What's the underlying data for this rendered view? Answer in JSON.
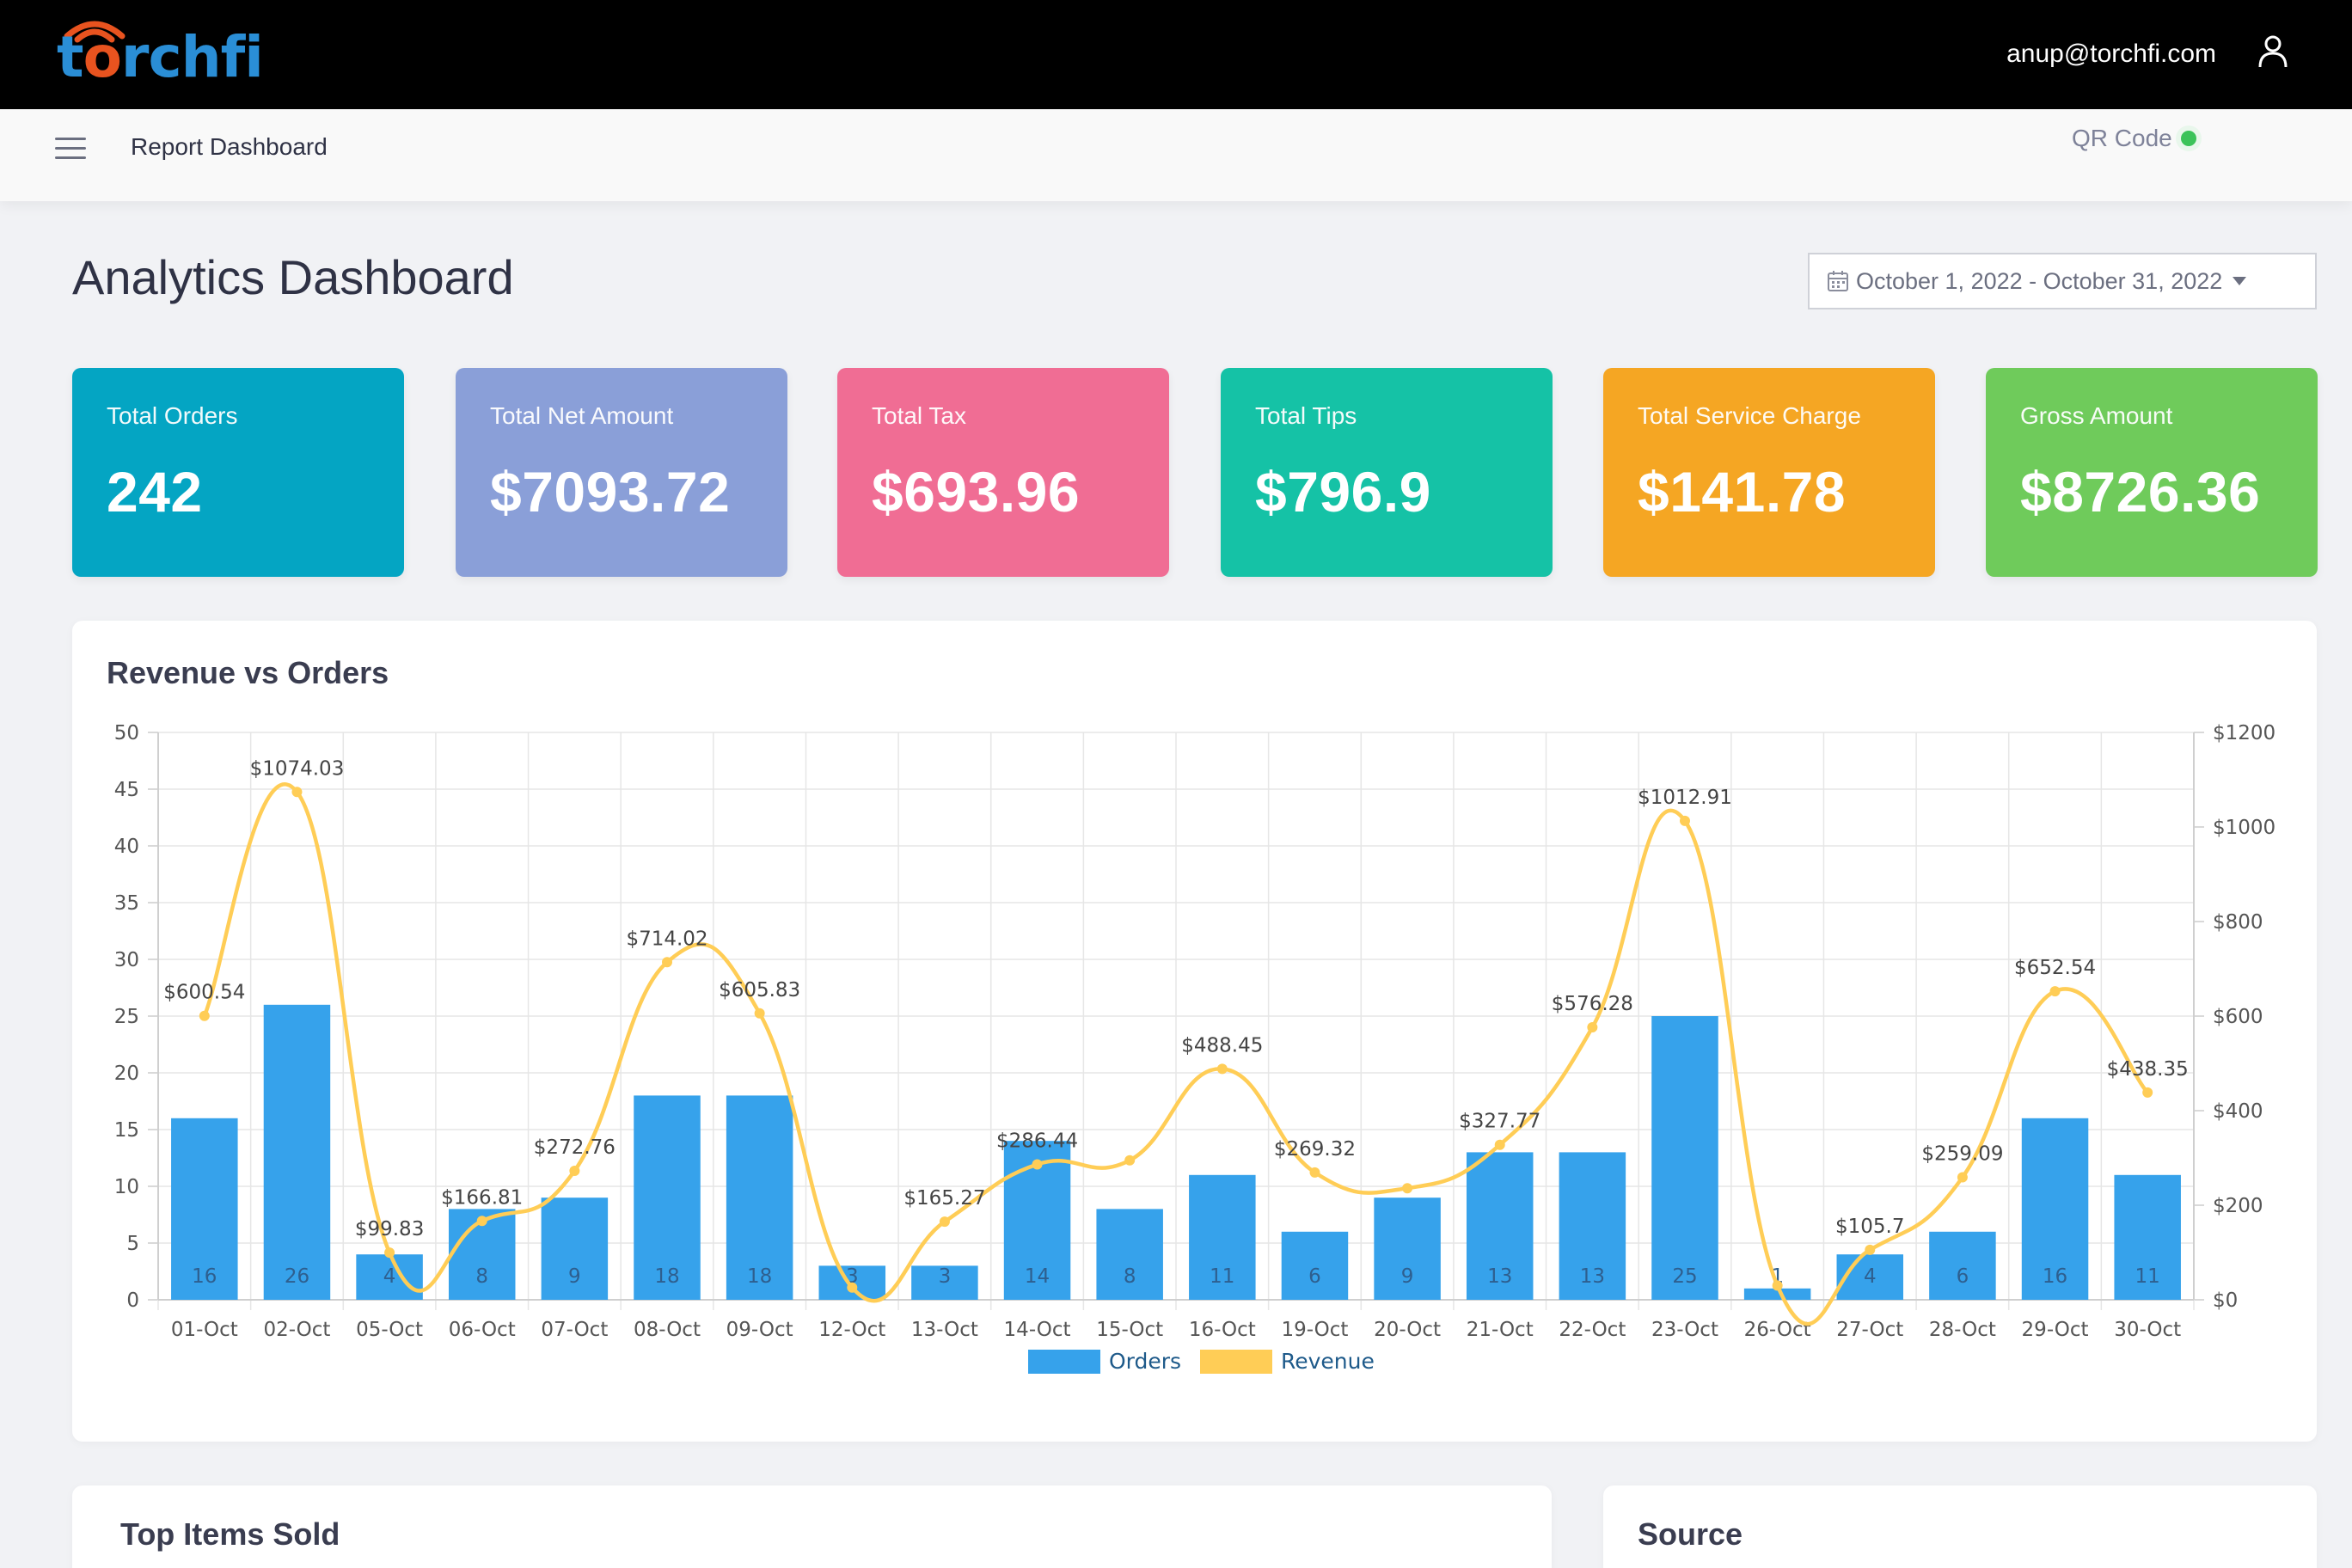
{
  "header": {
    "logo_text": "torchfi",
    "user_email": "anup@torchfi.com"
  },
  "subbar": {
    "title": "Report Dashboard",
    "qr_label": "QR Code"
  },
  "page": {
    "title": "Analytics Dashboard",
    "date_range": "October 1, 2022 - October 31, 2022"
  },
  "stats": [
    {
      "label": "Total Orders",
      "value": "242",
      "color": "#04a5c3"
    },
    {
      "label": "Total Net Amount",
      "value": "$7093.72",
      "color": "#8a9fd8"
    },
    {
      "label": "Total Tax",
      "value": "$693.96",
      "color": "#f06d94"
    },
    {
      "label": "Total Tips",
      "value": "$796.9",
      "color": "#15c2a6"
    },
    {
      "label": "Total Service Charge",
      "value": "$141.78",
      "color": "#f5a623"
    },
    {
      "label": "Gross Amount",
      "value": "$8726.36",
      "color": "#6fcb5b"
    }
  ],
  "revenue_chart": {
    "title": "Revenue vs Orders"
  },
  "bottom": {
    "top_items_title": "Top Items Sold",
    "source_title": "Source"
  },
  "colors": {
    "orders_bar": "#36a2eb",
    "revenue_line": "#ffcd56"
  },
  "chart_data": {
    "type": "bar",
    "title": "Revenue vs Orders",
    "categories": [
      "01-Oct",
      "02-Oct",
      "05-Oct",
      "06-Oct",
      "07-Oct",
      "08-Oct",
      "09-Oct",
      "12-Oct",
      "13-Oct",
      "14-Oct",
      "15-Oct",
      "16-Oct",
      "19-Oct",
      "20-Oct",
      "21-Oct",
      "22-Oct",
      "23-Oct",
      "26-Oct",
      "27-Oct",
      "28-Oct",
      "29-Oct",
      "30-Oct"
    ],
    "series": [
      {
        "name": "Orders",
        "type": "bar",
        "axis": "left",
        "values": [
          16,
          26,
          4,
          8,
          9,
          18,
          18,
          3,
          3,
          14,
          8,
          11,
          6,
          9,
          13,
          13,
          25,
          1,
          4,
          6,
          16,
          11
        ]
      },
      {
        "name": "Revenue",
        "type": "line",
        "axis": "right",
        "values": [
          600.54,
          1074.03,
          99.83,
          166.81,
          272.76,
          714.02,
          605.83,
          26,
          165.27,
          286.44,
          295,
          488.45,
          269.32,
          236,
          327.77,
          576.28,
          1012.91,
          30,
          105.7,
          259.09,
          652.54,
          438.35
        ]
      }
    ],
    "revenue_labels": [
      "$600.54",
      "$1074.03",
      "$99.83",
      "$166.81",
      "$272.76",
      "$714.02",
      "$605.83",
      "",
      "$165.27",
      "$286.44",
      "",
      "$488.45",
      "$269.32",
      "",
      "$327.77",
      "$576.28",
      "$1012.91",
      "",
      "$105.7",
      "$259.09",
      "$652.54",
      "$438.35"
    ],
    "left_axis": {
      "ylim": [
        0,
        50
      ],
      "ticks": [
        "0",
        "5",
        "10",
        "15",
        "20",
        "25",
        "30",
        "35",
        "40",
        "45",
        "50"
      ]
    },
    "right_axis": {
      "ylim": [
        0,
        1200
      ],
      "ticks": [
        "$0",
        "$200",
        "$400",
        "$600",
        "$800",
        "$1000",
        "$1200"
      ]
    },
    "grid": true,
    "legend_position": "bottom"
  }
}
